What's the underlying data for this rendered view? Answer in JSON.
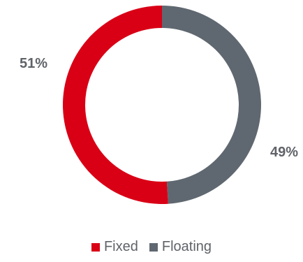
{
  "chart_data": {
    "type": "pie",
    "variant": "donut",
    "categories": [
      "Fixed",
      "Floating"
    ],
    "values": [
      51,
      49
    ],
    "labels": [
      "51%",
      "49%"
    ],
    "colors": [
      "#d90016",
      "#5f6870"
    ],
    "legend_position": "bottom",
    "title": ""
  }
}
